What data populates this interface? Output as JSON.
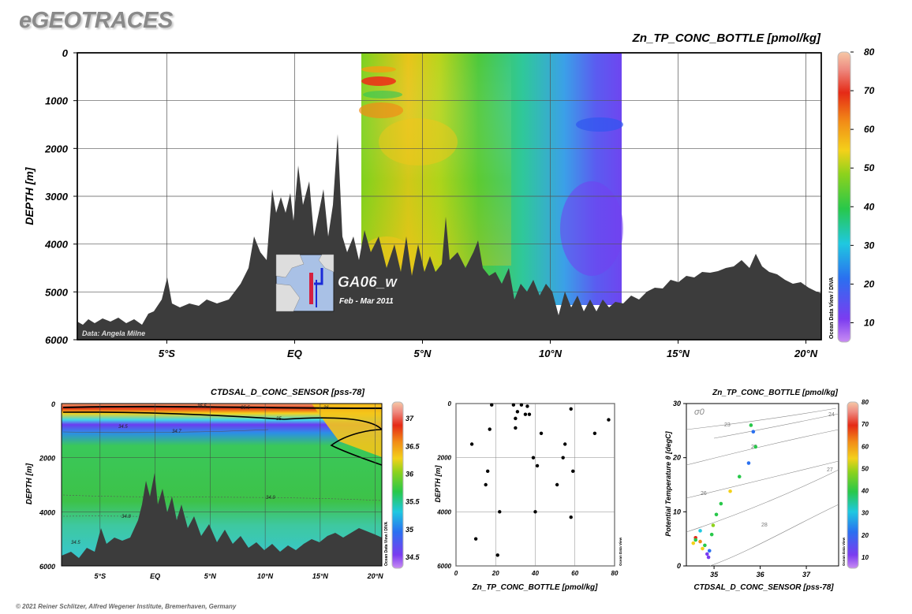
{
  "brand": "eGEOTRACES",
  "footer": "© 2021 Reiner Schlitzer, Alfred Wegener Institute, Bremerhaven, Germany",
  "odv_label": "Ocean Data View / DIVA",
  "odv_label_short": "Ocean Data View",
  "chart_data": [
    {
      "type": "heatmap",
      "title": "Zn_TP_CONC_BOTTLE [pmol/kg]",
      "ylabel": "DEPTH [m]",
      "xlabel": "",
      "x_ticks": [
        "5°S",
        "EQ",
        "5°N",
        "10°N",
        "15°N",
        "20°N"
      ],
      "x_tick_values": [
        -5,
        0,
        5,
        10,
        15,
        20
      ],
      "xlim": [
        -8.5,
        20.6
      ],
      "y_ticks": [
        "0",
        "1000",
        "2000",
        "3000",
        "4000",
        "5000",
        "6000"
      ],
      "ylim": [
        6000,
        0
      ],
      "colorbar": {
        "ticks": [
          "10",
          "20",
          "30",
          "40",
          "50",
          "60",
          "70",
          "80"
        ],
        "range": [
          5,
          80
        ]
      },
      "data_extent_lat": [
        2.6,
        12.8
      ],
      "annotation_data": "Data: Angela Milne",
      "inset": {
        "section": "GA06_w",
        "period": "Feb - Mar 2011"
      }
    },
    {
      "type": "heatmap",
      "title": "CTDSAL_D_CONC_SENSOR [pss-78]",
      "ylabel": "DEPTH [m]",
      "x_ticks": [
        "5°S",
        "EQ",
        "5°N",
        "10°N",
        "15°N",
        "20°N"
      ],
      "y_ticks": [
        "0",
        "2000",
        "4000",
        "6000"
      ],
      "ylim": [
        6000,
        0
      ],
      "colorbar": {
        "ticks": [
          "34.5",
          "35",
          "35.5",
          "36",
          "36.5",
          "37"
        ],
        "range": [
          34.3,
          37.3
        ]
      },
      "contour_labels": [
        "34.5",
        "34.7",
        "35",
        "35.5",
        "35.5",
        "36",
        "34.9",
        "34.8",
        "34.5"
      ]
    },
    {
      "type": "scatter",
      "title": "",
      "xlabel": "Zn_TP_CONC_BOTTLE [pmol/kg]",
      "ylabel": "DEPTH [m]",
      "x_ticks": [
        "0",
        "20",
        "40",
        "60",
        "80"
      ],
      "y_ticks": [
        "0",
        "2000",
        "4000",
        "6000"
      ],
      "xlim": [
        0,
        80
      ],
      "ylim": [
        6000,
        0
      ],
      "points": [
        {
          "x": 8,
          "y": 1500
        },
        {
          "x": 10,
          "y": 5000
        },
        {
          "x": 15,
          "y": 3000
        },
        {
          "x": 16,
          "y": 2500
        },
        {
          "x": 17,
          "y": 950
        },
        {
          "x": 18,
          "y": 50
        },
        {
          "x": 21,
          "y": 5600
        },
        {
          "x": 22,
          "y": 4000
        },
        {
          "x": 29,
          "y": 50
        },
        {
          "x": 30,
          "y": 550
        },
        {
          "x": 30,
          "y": 900
        },
        {
          "x": 31,
          "y": 300
        },
        {
          "x": 33,
          "y": 50
        },
        {
          "x": 35,
          "y": 400
        },
        {
          "x": 36,
          "y": 100
        },
        {
          "x": 37,
          "y": 400
        },
        {
          "x": 39,
          "y": 2000
        },
        {
          "x": 40,
          "y": 4000
        },
        {
          "x": 41,
          "y": 2300
        },
        {
          "x": 43,
          "y": 1100
        },
        {
          "x": 51,
          "y": 3000
        },
        {
          "x": 54,
          "y": 2000
        },
        {
          "x": 55,
          "y": 1500
        },
        {
          "x": 58,
          "y": 4200
        },
        {
          "x": 58,
          "y": 200
        },
        {
          "x": 59,
          "y": 2500
        },
        {
          "x": 70,
          "y": 1100
        },
        {
          "x": 77,
          "y": 600
        }
      ]
    },
    {
      "type": "scatter",
      "title": "Zn_TP_CONC_BOTTLE [pmol/kg]",
      "xlabel": "CTDSAL_D_CONC_SENSOR [pss-78]",
      "ylabel": "Potential Temperature θ [degC]",
      "x_ticks": [
        "35",
        "36",
        "37"
      ],
      "y_ticks": [
        "0",
        "10",
        "20",
        "30"
      ],
      "xlim": [
        34.4,
        37.7
      ],
      "ylim": [
        0,
        30
      ],
      "isopycnal_symbol": "σ0",
      "isopycnal_labels": [
        "23",
        "24",
        "25",
        "26",
        "27",
        "28"
      ],
      "colorbar": {
        "ticks": [
          "10",
          "20",
          "30",
          "40",
          "50",
          "60",
          "70",
          "80"
        ],
        "range": [
          5,
          80
        ]
      },
      "points": [
        {
          "x": 34.55,
          "y": 4.2,
          "z": 60
        },
        {
          "x": 34.6,
          "y": 5.2,
          "z": 70
        },
        {
          "x": 34.7,
          "y": 4.5,
          "z": 65
        },
        {
          "x": 34.8,
          "y": 3.8,
          "z": 45
        },
        {
          "x": 34.85,
          "y": 2.2,
          "z": 20
        },
        {
          "x": 34.88,
          "y": 1.6,
          "z": 15
        },
        {
          "x": 34.9,
          "y": 2.8,
          "z": 30
        },
        {
          "x": 34.95,
          "y": 5.8,
          "z": 40
        },
        {
          "x": 34.98,
          "y": 7.5,
          "z": 50
        },
        {
          "x": 35.05,
          "y": 9.5,
          "z": 40
        },
        {
          "x": 35.15,
          "y": 11.5,
          "z": 45
        },
        {
          "x": 35.35,
          "y": 13.8,
          "z": 55
        },
        {
          "x": 35.55,
          "y": 16.5,
          "z": 40
        },
        {
          "x": 35.75,
          "y": 19,
          "z": 25
        },
        {
          "x": 35.9,
          "y": 22,
          "z": 40
        },
        {
          "x": 35.85,
          "y": 24.8,
          "z": 30
        },
        {
          "x": 35.8,
          "y": 26,
          "z": 40
        },
        {
          "x": 34.7,
          "y": 6.5,
          "z": 35
        },
        {
          "x": 34.75,
          "y": 3.2,
          "z": 55
        },
        {
          "x": 34.6,
          "y": 4.8,
          "z": 40
        }
      ]
    }
  ]
}
